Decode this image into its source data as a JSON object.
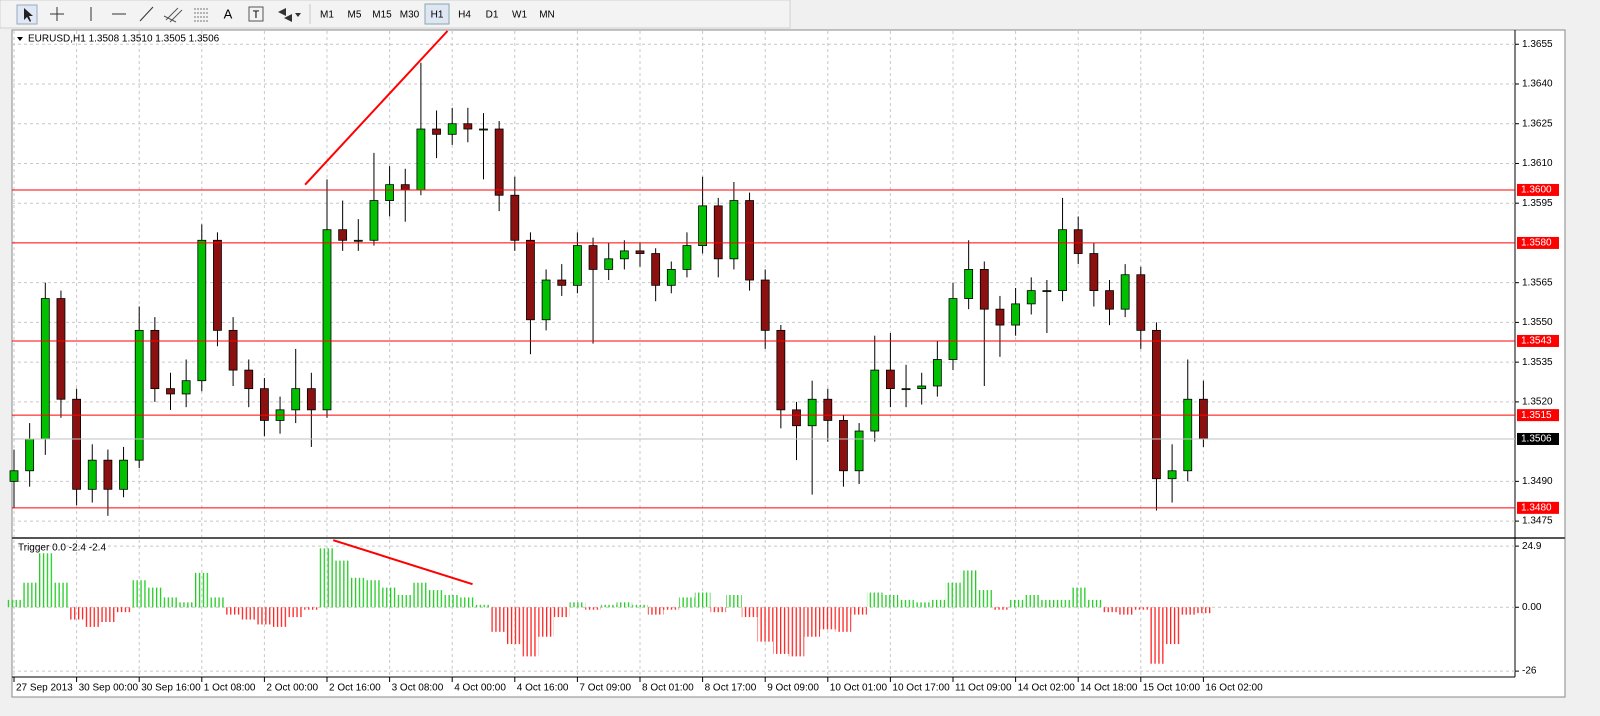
{
  "toolbar": {
    "text_tools": [
      "A",
      "T"
    ],
    "timeframes": [
      "M1",
      "M5",
      "M15",
      "M30",
      "H1",
      "H4",
      "D1",
      "W1",
      "MN"
    ],
    "selected_timeframe": 4
  },
  "chart_data": [
    {
      "type": "candlestick",
      "title": "EURUSD,H1 1.3508 1.3510 1.3505 1.3506",
      "up_color": "#00c000",
      "down_color": "#8b1010",
      "grid": true,
      "line_color": "#ff0000",
      "categories": [
        "27 Sep 2013",
        null,
        null,
        null,
        "30 Sep 00:00",
        null,
        null,
        null,
        "30 Sep 16:00",
        null,
        null,
        null,
        "1 Oct 08:00",
        null,
        null,
        null,
        "2 Oct 00:00",
        null,
        null,
        null,
        "2 Oct 16:00",
        null,
        null,
        null,
        "3 Oct 08:00",
        null,
        null,
        null,
        "4 Oct 00:00",
        null,
        null,
        null,
        "4 Oct 16:00",
        null,
        null,
        null,
        "7 Oct 09:00",
        null,
        null,
        null,
        "8 Oct 01:00",
        null,
        null,
        null,
        "8 Oct 17:00",
        null,
        null,
        null,
        "9 Oct 09:00",
        null,
        null,
        null,
        "10 Oct 01:00",
        null,
        null,
        null,
        "10 Oct 17:00",
        null,
        null,
        null,
        "11 Oct 09:00",
        null,
        null,
        null,
        "14 Oct 02:00",
        null,
        null,
        null,
        "14 Oct 18:00",
        null,
        null,
        null,
        "15 Oct 10:00",
        null,
        null,
        null,
        "16 Oct 02:00"
      ],
      "candles": [
        [
          1.349,
          1.3502,
          1.348,
          1.3494
        ],
        [
          1.3494,
          1.3512,
          1.3488,
          1.3506
        ],
        [
          1.3506,
          1.3565,
          1.35,
          1.3559
        ],
        [
          1.3559,
          1.3562,
          1.3514,
          1.3521
        ],
        [
          1.3521,
          1.3525,
          1.3481,
          1.3487
        ],
        [
          1.3487,
          1.3504,
          1.3482,
          1.3498
        ],
        [
          1.3498,
          1.3502,
          1.3477,
          1.3487
        ],
        [
          1.3487,
          1.3503,
          1.3484,
          1.3498
        ],
        [
          1.3498,
          1.3556,
          1.3495,
          1.3547
        ],
        [
          1.3547,
          1.3552,
          1.352,
          1.3525
        ],
        [
          1.3525,
          1.3531,
          1.3517,
          1.3523
        ],
        [
          1.3523,
          1.3536,
          1.3518,
          1.3528
        ],
        [
          1.3528,
          1.3587,
          1.3524,
          1.3581
        ],
        [
          1.3581,
          1.3584,
          1.3541,
          1.3547
        ],
        [
          1.3547,
          1.3552,
          1.3526,
          1.3532
        ],
        [
          1.3532,
          1.3536,
          1.3518,
          1.3525
        ],
        [
          1.3525,
          1.3529,
          1.3507,
          1.3513
        ],
        [
          1.3513,
          1.3522,
          1.3508,
          1.3517
        ],
        [
          1.3517,
          1.354,
          1.3512,
          1.3525
        ],
        [
          1.3525,
          1.3531,
          1.3503,
          1.3517
        ],
        [
          1.3517,
          1.3604,
          1.3514,
          1.3585
        ],
        [
          1.3585,
          1.3596,
          1.3577,
          1.3581
        ],
        [
          1.3581,
          1.3589,
          1.3577,
          1.3581
        ],
        [
          1.3581,
          1.3614,
          1.3579,
          1.3596
        ],
        [
          1.3596,
          1.3609,
          1.359,
          1.3602
        ],
        [
          1.3602,
          1.3608,
          1.3588,
          1.36
        ],
        [
          1.36,
          1.3648,
          1.3598,
          1.3623
        ],
        [
          1.3623,
          1.363,
          1.3612,
          1.3621
        ],
        [
          1.3621,
          1.3631,
          1.3617,
          1.3625
        ],
        [
          1.3625,
          1.3631,
          1.3618,
          1.3623
        ],
        [
          1.3623,
          1.3629,
          1.3604,
          1.3623
        ],
        [
          1.3623,
          1.3626,
          1.3592,
          1.3598
        ],
        [
          1.3598,
          1.3605,
          1.3577,
          1.3581
        ],
        [
          1.3581,
          1.3584,
          1.3538,
          1.3551
        ],
        [
          1.3551,
          1.357,
          1.3547,
          1.3566
        ],
        [
          1.3566,
          1.3572,
          1.356,
          1.3564
        ],
        [
          1.3564,
          1.3584,
          1.3561,
          1.3579
        ],
        [
          1.3579,
          1.3582,
          1.3542,
          1.357
        ],
        [
          1.357,
          1.358,
          1.3566,
          1.3574
        ],
        [
          1.3574,
          1.3581,
          1.357,
          1.3577
        ],
        [
          1.3577,
          1.358,
          1.3571,
          1.3576
        ],
        [
          1.3576,
          1.3578,
          1.3558,
          1.3564
        ],
        [
          1.3564,
          1.3573,
          1.3561,
          1.357
        ],
        [
          1.357,
          1.3584,
          1.3567,
          1.3579
        ],
        [
          1.3579,
          1.3605,
          1.3576,
          1.3594
        ],
        [
          1.3594,
          1.3597,
          1.3567,
          1.3574
        ],
        [
          1.3574,
          1.3603,
          1.357,
          1.3596
        ],
        [
          1.3596,
          1.3599,
          1.3562,
          1.3566
        ],
        [
          1.3566,
          1.357,
          1.354,
          1.3547
        ],
        [
          1.3547,
          1.3549,
          1.351,
          1.3517
        ],
        [
          1.3517,
          1.352,
          1.3498,
          1.3511
        ],
        [
          1.3511,
          1.3528,
          1.3485,
          1.3521
        ],
        [
          1.3521,
          1.3525,
          1.3505,
          1.3513
        ],
        [
          1.3513,
          1.3515,
          1.3488,
          1.3494
        ],
        [
          1.3494,
          1.3512,
          1.3489,
          1.3509
        ],
        [
          1.3509,
          1.3545,
          1.3505,
          1.3532
        ],
        [
          1.3532,
          1.3546,
          1.3518,
          1.3525
        ],
        [
          1.3525,
          1.3534,
          1.3518,
          1.3525
        ],
        [
          1.3525,
          1.3531,
          1.3519,
          1.3526
        ],
        [
          1.3526,
          1.3543,
          1.3522,
          1.3536
        ],
        [
          1.3536,
          1.3565,
          1.3532,
          1.3559
        ],
        [
          1.3559,
          1.3581,
          1.3555,
          1.357
        ],
        [
          1.357,
          1.3573,
          1.3526,
          1.3555
        ],
        [
          1.3555,
          1.356,
          1.3537,
          1.3549
        ],
        [
          1.3549,
          1.3563,
          1.3545,
          1.3557
        ],
        [
          1.3557,
          1.3567,
          1.3553,
          1.3562
        ],
        [
          1.3562,
          1.3566,
          1.3546,
          1.3562
        ],
        [
          1.3562,
          1.3597,
          1.3558,
          1.3585
        ],
        [
          1.3585,
          1.359,
          1.3572,
          1.3576
        ],
        [
          1.3576,
          1.358,
          1.3556,
          1.3562
        ],
        [
          1.3562,
          1.3566,
          1.3549,
          1.3555
        ],
        [
          1.3555,
          1.3572,
          1.3552,
          1.3568
        ],
        [
          1.3568,
          1.3571,
          1.354,
          1.3547
        ],
        [
          1.3547,
          1.355,
          1.3479,
          1.3491
        ],
        [
          1.3491,
          1.3504,
          1.3482,
          1.3494
        ],
        [
          1.3494,
          1.3536,
          1.349,
          1.3521
        ],
        [
          1.3521,
          1.3528,
          1.3503,
          1.3506
        ]
      ],
      "ylim": [
        1.3469,
        1.366
      ],
      "yticks": [
        1.3655,
        {
          "value": 1.364,
          "label": "1.3640"
        },
        1.3625,
        {
          "value": 1.361,
          "label": "1.3610"
        },
        1.3595,
        1.3565,
        {
          "value": 1.355,
          "label": "1.3550"
        },
        1.3535,
        {
          "value": 1.352,
          "label": "1.3520"
        },
        {
          "value": 1.349,
          "label": "1.3490"
        },
        1.3475
      ],
      "hlines": [
        {
          "value": 1.36,
          "label": "1.3600"
        },
        {
          "value": 1.358,
          "label": "1.3580"
        },
        1.3543,
        1.3515,
        {
          "value": 1.348,
          "label": "1.3480"
        }
      ],
      "current_price": 1.3506,
      "trendline": {
        "x": [
          18.6,
          27.7
        ],
        "y": [
          1.3602,
          1.366
        ]
      }
    },
    {
      "type": "bar",
      "title": "Trigger 0.0 -2.4 -2.4",
      "pos_color": "#22cc22",
      "neg_color": "#ff2222",
      "line_color": "#ff0000",
      "values": [
        3,
        10,
        22,
        10,
        -5,
        -8,
        -6,
        -2,
        11,
        8,
        4,
        2,
        14,
        4,
        -3,
        -5,
        -7,
        -8,
        -4,
        -1,
        24,
        19,
        12,
        11,
        8,
        5,
        10,
        7,
        5,
        4,
        1,
        -10,
        -15,
        -20,
        -12,
        -4,
        2,
        -1,
        1,
        2,
        1,
        -3,
        -1,
        4,
        6,
        -2,
        5,
        -4,
        -14,
        -19,
        -20,
        -12,
        -9,
        -10,
        -3,
        6,
        5,
        3,
        2,
        3,
        10,
        15,
        7,
        -1,
        3,
        5,
        3,
        3,
        8,
        3,
        -2,
        -3,
        -1,
        -23,
        -15,
        -3,
        -2.4
      ],
      "ylim": [
        -28.4,
        27.8
      ],
      "yticks": [
        24.9,
        {
          "value": 0,
          "label": "0.00"
        },
        -26
      ],
      "trendline": {
        "x": [
          20.4,
          29.3
        ],
        "y": [
          27.3,
          9.4
        ]
      }
    }
  ]
}
